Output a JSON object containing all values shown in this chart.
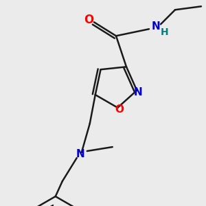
{
  "background_color": "#ebebeb",
  "bond_color": "#1a1a1a",
  "O_color": "#ff0000",
  "N_color": "#0000cc",
  "NH_color": "#008080",
  "line_width": 1.8,
  "figsize": [
    3.0,
    3.0
  ],
  "dpi": 100,
  "xlim": [
    0,
    300
  ],
  "ylim": [
    0,
    300
  ]
}
